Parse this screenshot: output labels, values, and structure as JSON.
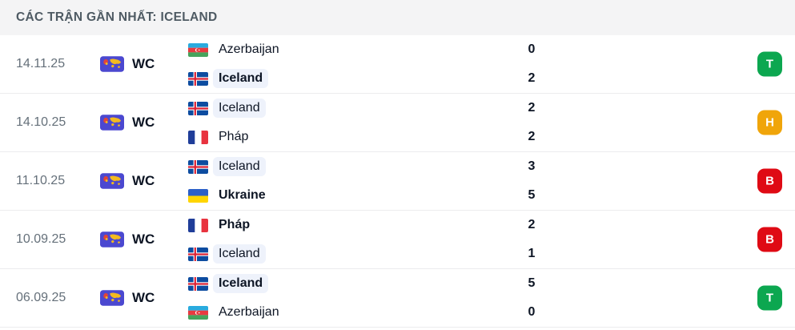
{
  "header": {
    "title": "CÁC TRẬN GẦN NHẤT: ICELAND"
  },
  "competition": {
    "label": "WC",
    "icon": "world-cup-icon",
    "icon_bg": "#4B48D0",
    "icon_map": "#F3BA1F"
  },
  "colors": {
    "win_badge": "#0CA750",
    "draw_badge": "#F0A50A",
    "loss_badge": "#DF0A14",
    "team_highlight": "#EEF2FB",
    "header_bg": "#F4F4F5"
  },
  "matches": [
    {
      "date": "14.11.25",
      "competition": "WC",
      "teams": [
        {
          "name": "Azerbaijan",
          "flag": "azerbaijan",
          "score": "0",
          "bold": false,
          "highlight": false
        },
        {
          "name": "Iceland",
          "flag": "iceland",
          "score": "2",
          "bold": true,
          "highlight": true
        }
      ],
      "result": "T",
      "result_type": "win"
    },
    {
      "date": "14.10.25",
      "competition": "WC",
      "teams": [
        {
          "name": "Iceland",
          "flag": "iceland",
          "score": "2",
          "bold": false,
          "highlight": true
        },
        {
          "name": "Pháp",
          "flag": "france",
          "score": "2",
          "bold": false,
          "highlight": false
        }
      ],
      "result": "H",
      "result_type": "draw"
    },
    {
      "date": "11.10.25",
      "competition": "WC",
      "teams": [
        {
          "name": "Iceland",
          "flag": "iceland",
          "score": "3",
          "bold": false,
          "highlight": true
        },
        {
          "name": "Ukraine",
          "flag": "ukraine",
          "score": "5",
          "bold": true,
          "highlight": false
        }
      ],
      "result": "B",
      "result_type": "loss"
    },
    {
      "date": "10.09.25",
      "competition": "WC",
      "teams": [
        {
          "name": "Pháp",
          "flag": "france",
          "score": "2",
          "bold": true,
          "highlight": false
        },
        {
          "name": "Iceland",
          "flag": "iceland",
          "score": "1",
          "bold": false,
          "highlight": true
        }
      ],
      "result": "B",
      "result_type": "loss"
    },
    {
      "date": "06.09.25",
      "competition": "WC",
      "teams": [
        {
          "name": "Iceland",
          "flag": "iceland",
          "score": "5",
          "bold": true,
          "highlight": true
        },
        {
          "name": "Azerbaijan",
          "flag": "azerbaijan",
          "score": "0",
          "bold": false,
          "highlight": false
        }
      ],
      "result": "T",
      "result_type": "win"
    }
  ]
}
